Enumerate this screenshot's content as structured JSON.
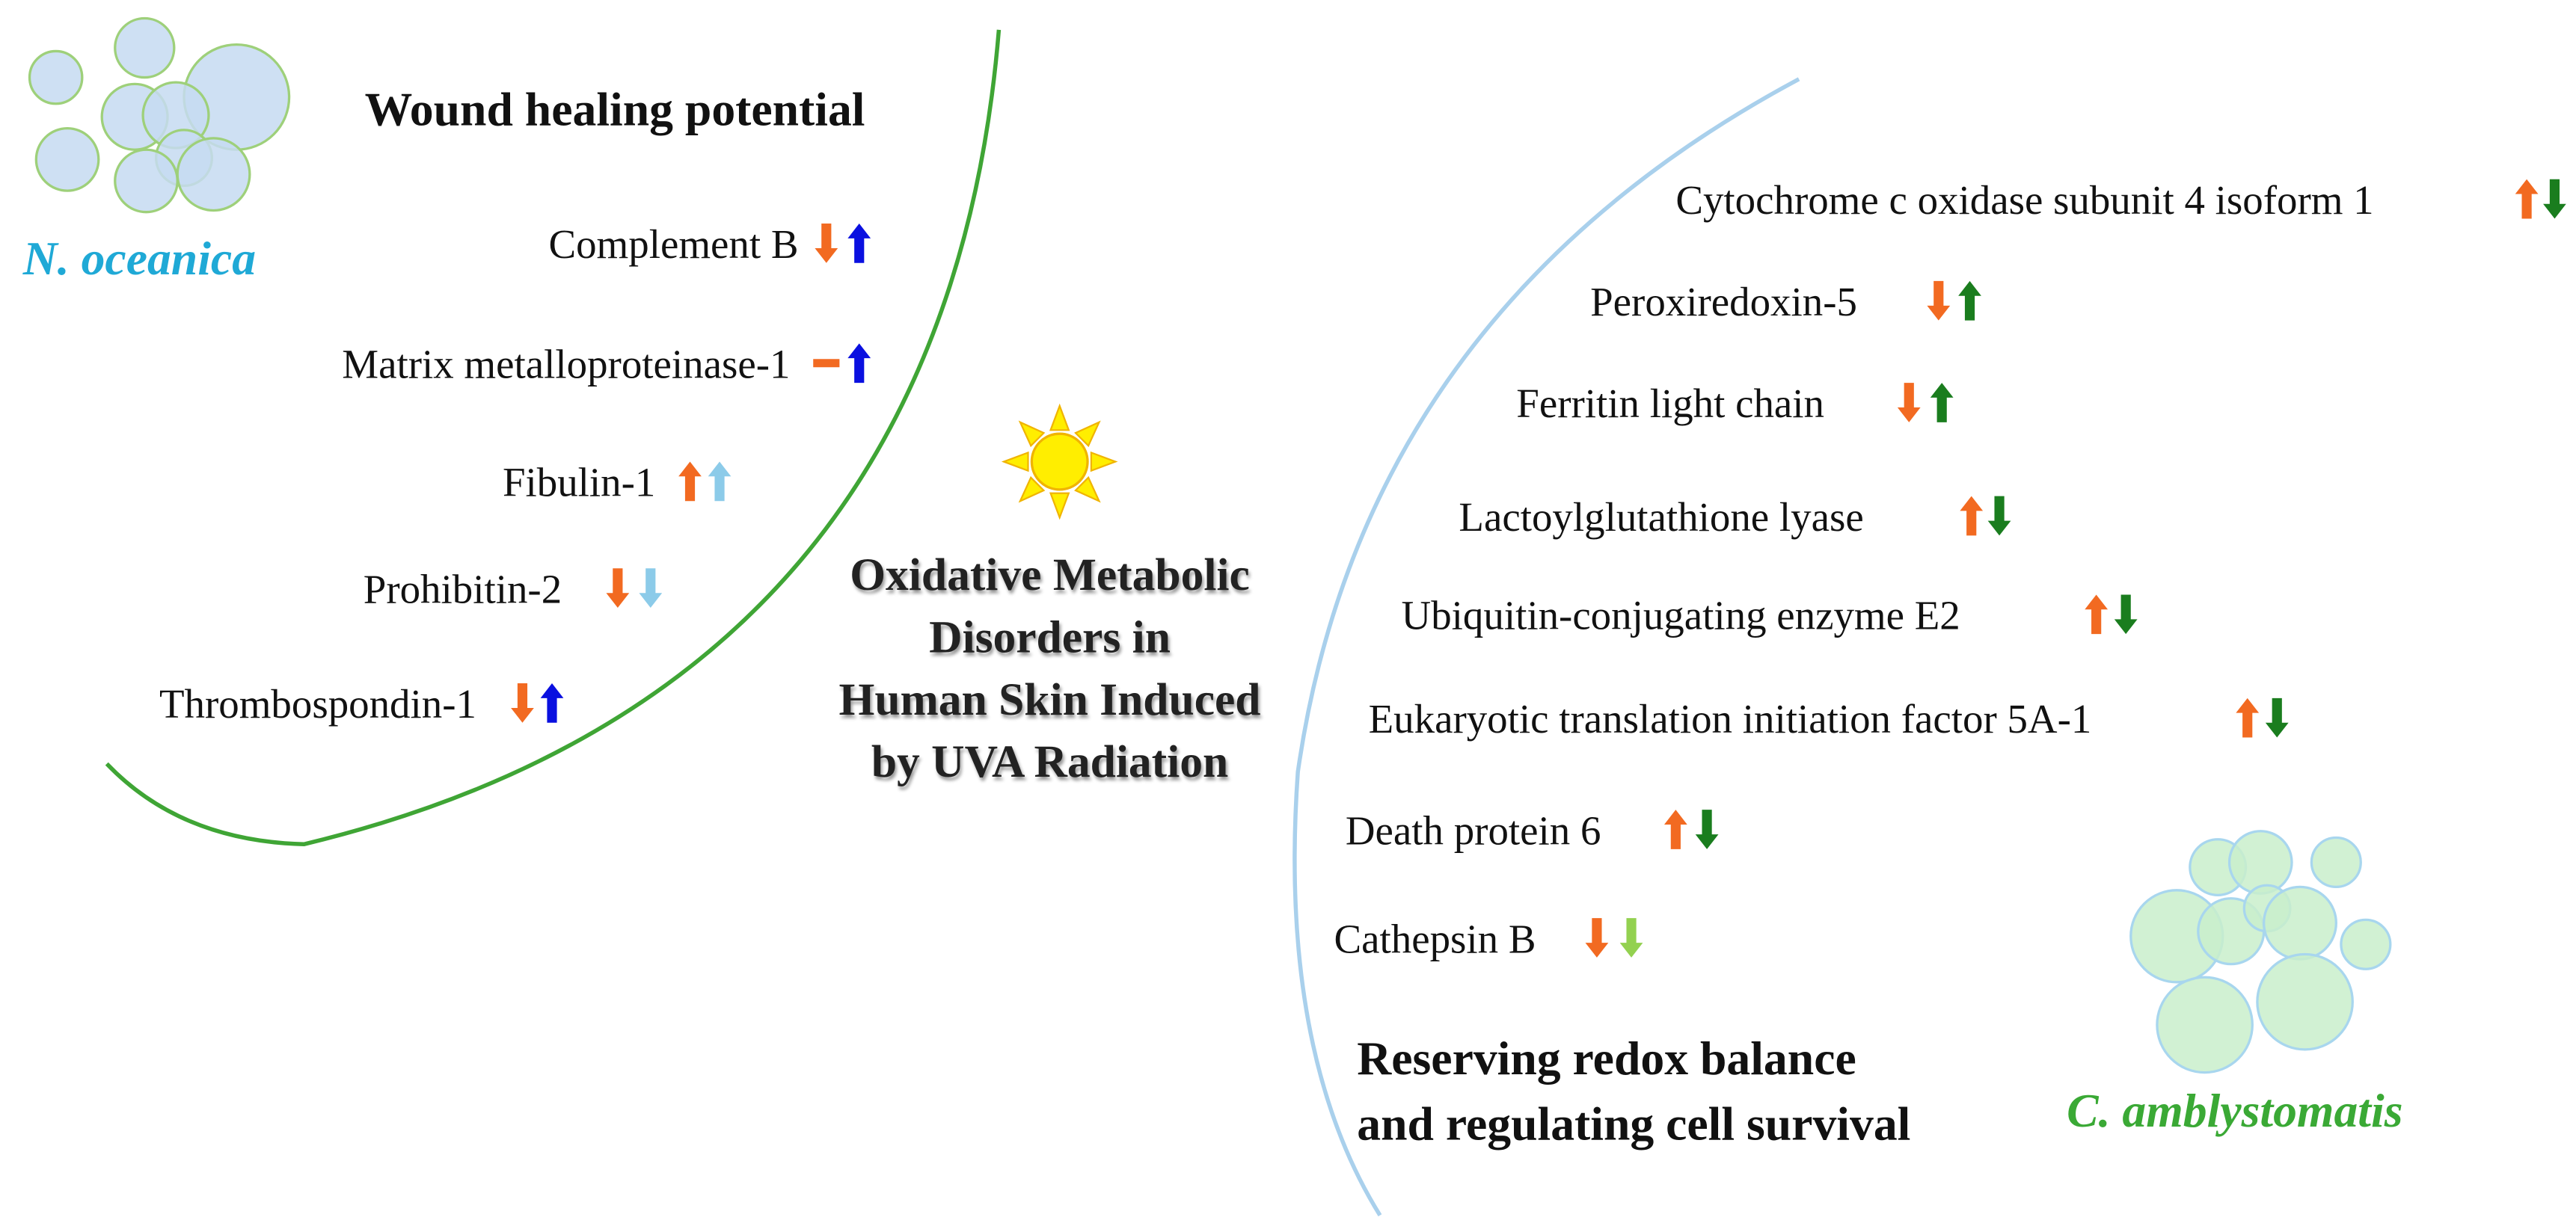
{
  "left": {
    "title": "Wound healing potential",
    "organism": "N. oceanica",
    "items": [
      "Complement B",
      "Matrix metalloproteinase-1",
      "Fibulin-1",
      "Prohibitin-2",
      "Thrombospondin-1"
    ]
  },
  "center": {
    "lines": [
      "Oxidative Metabolic",
      "Disorders in",
      "Human Skin Induced",
      "by UVA Radiation"
    ]
  },
  "right": {
    "title": [
      "Reserving redox balance",
      "and regulating cell survival"
    ],
    "organism": "C. amblystomatis",
    "items": [
      "Cytochrome c oxidase subunit 4 isoform 1",
      "Peroxiredoxin-5",
      "Ferritin light chain",
      "Lactoylglutathione lyase",
      "Ubiquitin-conjugating enzyme E2",
      "Eukaryotic translation initiation factor 5A-1",
      "Death protein 6",
      "Cathepsin B"
    ]
  }
}
